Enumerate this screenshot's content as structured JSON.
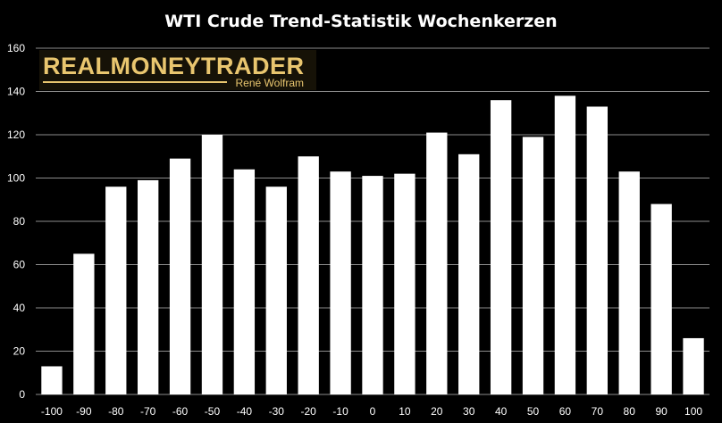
{
  "colors": {
    "background": "#000000",
    "bars": "#ffffff",
    "gridlines": "#8c8c8c",
    "logo_gold": "#e9c66f"
  },
  "logo": {
    "main": "REALMONEYTRADER",
    "sub": "René Wolfram"
  },
  "chart_data": {
    "type": "bar",
    "title": "WTI Crude Trend-Statistik Wochenkerzen",
    "xlabel": "",
    "ylabel": "",
    "categories": [
      "-100",
      "-90",
      "-80",
      "-70",
      "-60",
      "-50",
      "-40",
      "-30",
      "-20",
      "-10",
      "0",
      "10",
      "20",
      "30",
      "40",
      "50",
      "60",
      "70",
      "80",
      "90",
      "100"
    ],
    "values": [
      13,
      65,
      96,
      99,
      109,
      120,
      104,
      96,
      110,
      103,
      101,
      102,
      121,
      111,
      136,
      119,
      138,
      133,
      103,
      88,
      26
    ],
    "ylim": [
      0,
      160
    ],
    "yticks": [
      0,
      20,
      40,
      60,
      80,
      100,
      120,
      140,
      160
    ],
    "grid": true,
    "legend": "none"
  }
}
